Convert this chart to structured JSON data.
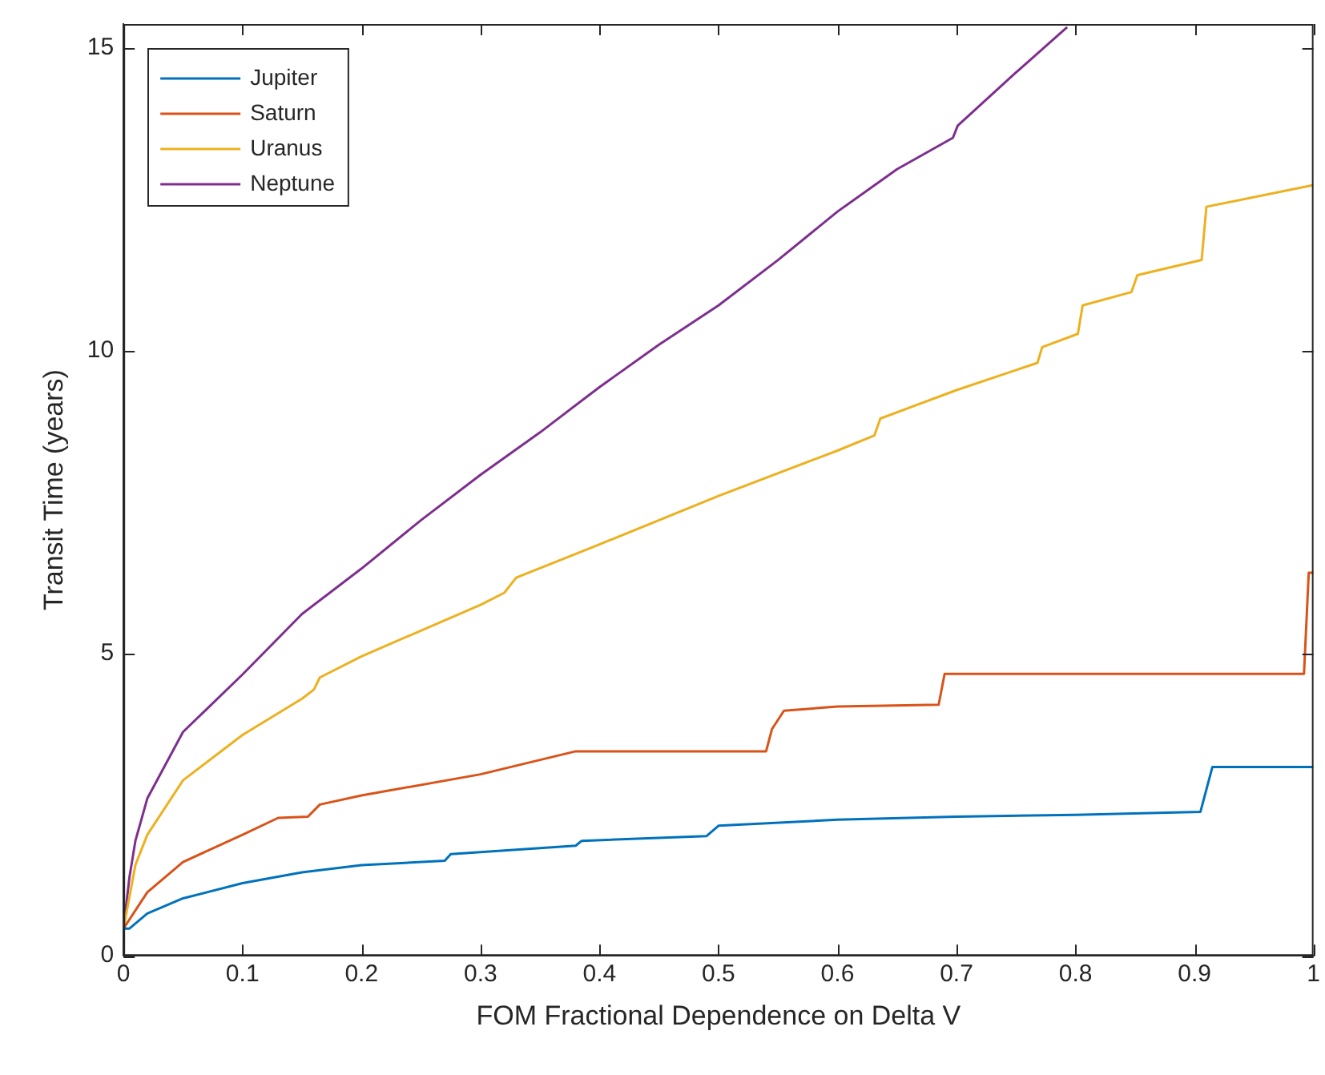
{
  "chart_data": {
    "type": "line",
    "xlabel": "FOM Fractional Dependence on Delta V",
    "ylabel": "Transit Time (years)",
    "xlim": [
      0,
      1
    ],
    "ylim": [
      0,
      15.4
    ],
    "xticks": [
      0,
      0.1,
      0.2,
      0.3,
      0.4,
      0.5,
      0.6,
      0.7,
      0.8,
      0.9,
      1
    ],
    "yticks": [
      0,
      5,
      10,
      15
    ],
    "grid": false,
    "legend": "top left",
    "marker": "none",
    "line_style": "solid",
    "series": [
      {
        "name": "Jupiter",
        "color": "#0072bd",
        "x": [
          0,
          0.005,
          0.02,
          0.05,
          0.1,
          0.15,
          0.2,
          0.27,
          0.275,
          0.38,
          0.385,
          0.49,
          0.5,
          0.6,
          0.7,
          0.8,
          0.905,
          0.915,
          1
        ],
        "values": [
          0.45,
          0.45,
          0.7,
          0.95,
          1.2,
          1.38,
          1.5,
          1.57,
          1.68,
          1.82,
          1.9,
          1.98,
          2.15,
          2.25,
          2.3,
          2.33,
          2.38,
          3.12,
          3.12
        ]
      },
      {
        "name": "Saturn",
        "color": "#d95319",
        "x": [
          0,
          0.02,
          0.05,
          0.1,
          0.13,
          0.155,
          0.165,
          0.2,
          0.3,
          0.38,
          0.54,
          0.545,
          0.555,
          0.6,
          0.685,
          0.69,
          0.992,
          0.996,
          1
        ],
        "values": [
          0.45,
          1.05,
          1.55,
          2.0,
          2.28,
          2.3,
          2.5,
          2.65,
          3.0,
          3.38,
          3.38,
          3.75,
          4.05,
          4.12,
          4.15,
          4.66,
          4.66,
          6.33,
          6.33
        ]
      },
      {
        "name": "Uranus",
        "color": "#edb120",
        "x": [
          0,
          0.01,
          0.02,
          0.05,
          0.1,
          0.15,
          0.16,
          0.165,
          0.2,
          0.3,
          0.32,
          0.33,
          0.4,
          0.5,
          0.6,
          0.631,
          0.636,
          0.7,
          0.768,
          0.772,
          0.802,
          0.806,
          0.847,
          0.852,
          0.906,
          0.91,
          1
        ],
        "values": [
          0.45,
          1.5,
          2.0,
          2.9,
          3.65,
          4.25,
          4.4,
          4.6,
          4.95,
          5.8,
          6.0,
          6.25,
          6.8,
          7.6,
          8.35,
          8.6,
          8.88,
          9.35,
          9.8,
          10.06,
          10.28,
          10.75,
          10.97,
          11.25,
          11.5,
          12.38,
          12.74
        ]
      },
      {
        "name": "Neptune",
        "color": "#7e2f8e",
        "x": [
          0,
          0.005,
          0.01,
          0.02,
          0.05,
          0.1,
          0.15,
          0.2,
          0.25,
          0.3,
          0.35,
          0.4,
          0.45,
          0.5,
          0.55,
          0.6,
          0.65,
          0.697,
          0.701,
          0.75,
          0.793
        ],
        "values": [
          0.45,
          1.3,
          1.9,
          2.6,
          3.7,
          4.65,
          5.65,
          6.4,
          7.2,
          7.95,
          8.65,
          9.4,
          10.1,
          10.75,
          11.5,
          12.3,
          13.0,
          13.52,
          13.72,
          14.6,
          15.35
        ]
      }
    ]
  }
}
